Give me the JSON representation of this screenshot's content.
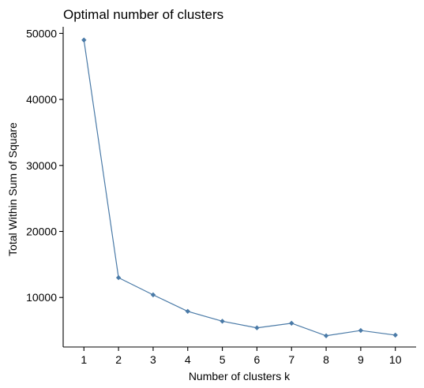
{
  "chart_data": {
    "type": "line",
    "title": "Optimal number of clusters",
    "xlabel": "Number of clusters k",
    "ylabel": "Total Within Sum of Square",
    "x": [
      "1",
      "2",
      "3",
      "4",
      "5",
      "6",
      "7",
      "8",
      "9",
      "10"
    ],
    "values": [
      49000,
      13000,
      10400,
      7900,
      6400,
      5400,
      6100,
      4200,
      5000,
      4300
    ],
    "y_ticks": [
      10000,
      20000,
      30000,
      40000,
      50000
    ],
    "ylim": [
      2500,
      51000
    ],
    "grid": false,
    "line_color": "#4a7aa7",
    "point_color": "#4a7aa7"
  }
}
